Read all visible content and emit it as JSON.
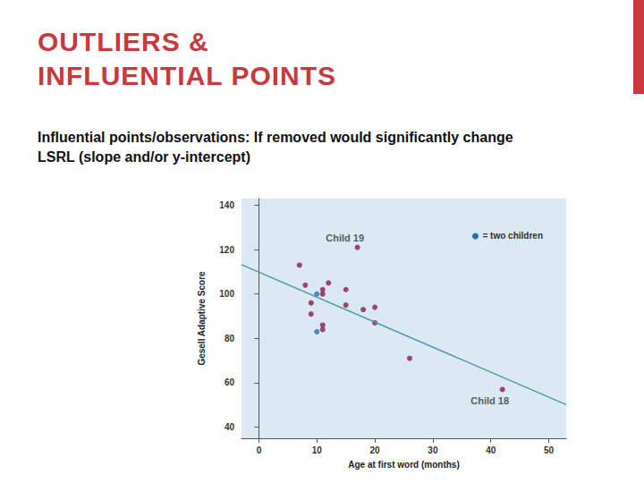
{
  "slide": {
    "title_lines": [
      "OUTLIERS &",
      "INFLUENTIAL POINTS"
    ],
    "text": "Influential points/observations:  If removed would significantly change LSRL (slope and/or y-intercept)"
  },
  "chart_data": {
    "type": "scatter",
    "x_label": "Age at first word (months)",
    "y_label": "Gesell Adaptive Score",
    "xlim": [
      -3,
      53
    ],
    "xticks": [
      0,
      10,
      20,
      30,
      40,
      50
    ],
    "ylim": [
      35,
      143
    ],
    "yticks": [
      40,
      60,
      80,
      100,
      120,
      140
    ],
    "grid": false,
    "points": {
      "x": [
        15,
        26,
        10,
        9,
        15,
        20,
        18,
        11,
        8,
        20,
        7,
        9,
        11,
        11,
        10,
        12,
        42,
        17,
        11
      ],
      "values": [
        95,
        71,
        83,
        91,
        102,
        87,
        93,
        100,
        104,
        94,
        113,
        96,
        84,
        102,
        100,
        105,
        57,
        121,
        86
      ],
      "colors": [
        "#8b1a4a",
        "#8b1a4a",
        "#2e6db4",
        "#8b1a4a",
        "#8b1a4a",
        "#8b1a4a",
        "#8b1a4a",
        "#8b1a4a",
        "#8b1a4a",
        "#8b1a4a",
        "#8b1a4a",
        "#8b1a4a",
        "#8b1a4a",
        "#8b1a4a",
        "#2e6db4",
        "#8b1a4a",
        "#8b1a4a",
        "#8b1a4a",
        "#8b1a4a"
      ]
    },
    "fit_line": {
      "type": "line",
      "x": [
        -3,
        53
      ],
      "values": [
        113.25,
        50.14
      ],
      "color": "#4a9aa8"
    },
    "annotations": [
      {
        "text": "Child 19",
        "x": 17,
        "y": 121
      },
      {
        "text": "Child 18",
        "x": 42,
        "y": 57
      }
    ],
    "key": {
      "text": "= two children",
      "color": "#2e6db4"
    }
  }
}
